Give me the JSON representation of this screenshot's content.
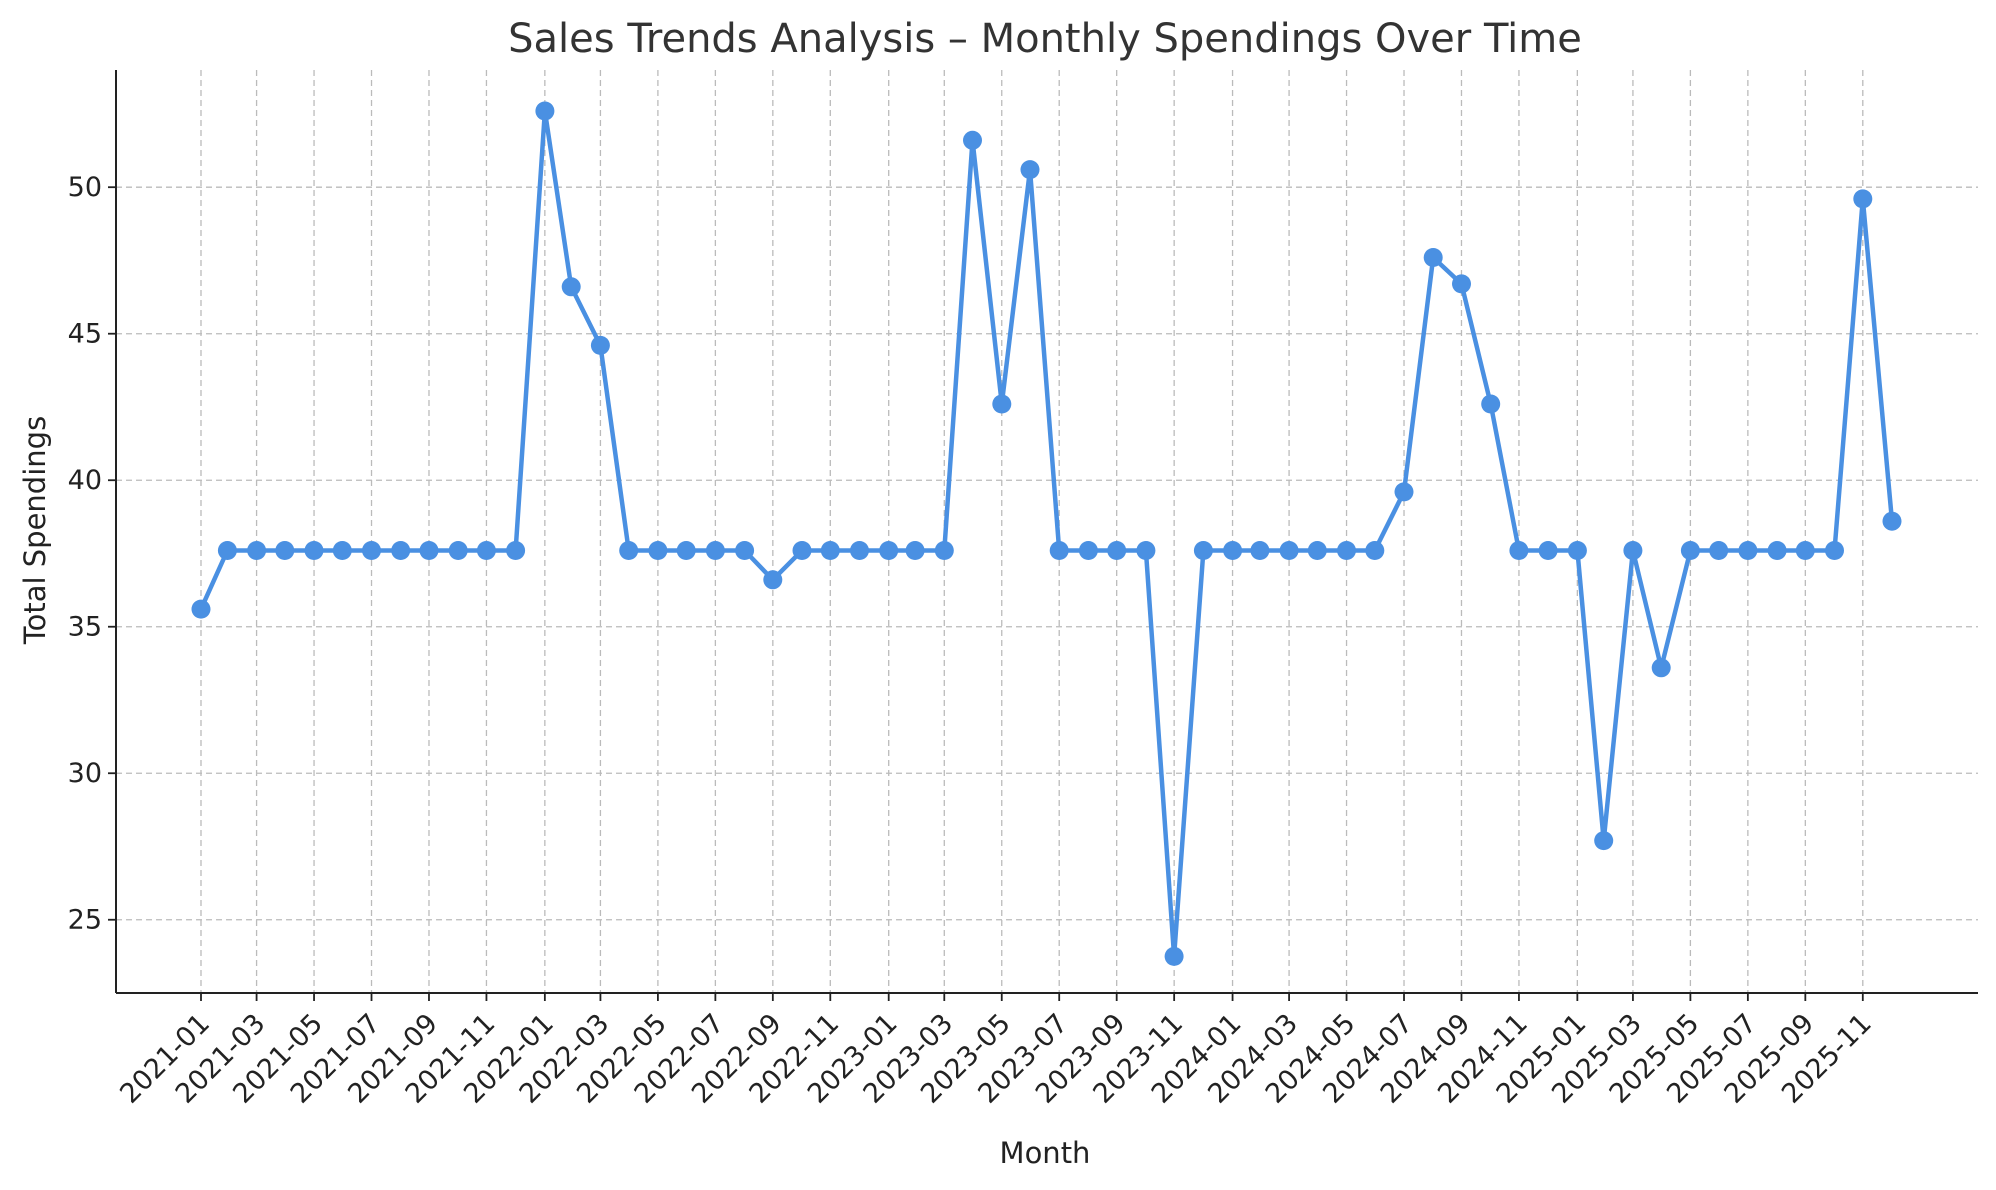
{
  "chart_data": {
    "type": "line",
    "title": "Sales Trends Analysis – Monthly Spendings Over Time",
    "xlabel": "Month",
    "ylabel": "Total Spendings",
    "ylim": [
      22.5,
      54
    ],
    "yticks": [
      25,
      30,
      35,
      40,
      45,
      50
    ],
    "grid": true,
    "color": "#4a90e2",
    "x_tick_labels": [
      "2021-01",
      "2021-03",
      "2021-05",
      "2021-07",
      "2021-09",
      "2021-11",
      "2022-01",
      "2022-03",
      "2022-05",
      "2022-07",
      "2022-09",
      "2022-11",
      "2023-01",
      "2023-03",
      "2023-05",
      "2023-07",
      "2023-09",
      "2023-11",
      "2024-01",
      "2024-03",
      "2024-05",
      "2024-07",
      "2024-09",
      "2024-11",
      "2025-01",
      "2025-03",
      "2025-05",
      "2025-07",
      "2025-09",
      "2025-11"
    ],
    "x": [
      "2021-01-31",
      "2021-02-28",
      "2021-03-31",
      "2021-04-30",
      "2021-05-31",
      "2021-06-30",
      "2021-07-31",
      "2021-08-31",
      "2021-09-30",
      "2021-10-31",
      "2021-11-30",
      "2021-12-31",
      "2022-01-31",
      "2022-02-28",
      "2022-03-31",
      "2022-04-30",
      "2022-05-31",
      "2022-06-30",
      "2022-07-31",
      "2022-08-31",
      "2022-09-30",
      "2022-10-31",
      "2022-11-30",
      "2022-12-31",
      "2023-01-31",
      "2023-02-28",
      "2023-03-31",
      "2023-04-30",
      "2023-05-31",
      "2023-06-30",
      "2023-07-31",
      "2023-08-31",
      "2023-09-30",
      "2023-10-31",
      "2023-11-30",
      "2023-12-31",
      "2024-01-31",
      "2024-02-29",
      "2024-03-31",
      "2024-04-30",
      "2024-05-31",
      "2024-06-30",
      "2024-07-31",
      "2024-08-31",
      "2024-09-30",
      "2024-10-31",
      "2024-11-30",
      "2024-12-31",
      "2025-01-31",
      "2025-02-28",
      "2025-03-31",
      "2025-04-30",
      "2025-05-31",
      "2025-06-30",
      "2025-07-31",
      "2025-08-31",
      "2025-09-30",
      "2025-10-31",
      "2025-11-30",
      "2025-12-31"
    ],
    "values": [
      35.6,
      37.6,
      37.6,
      37.6,
      37.6,
      37.6,
      37.6,
      37.6,
      37.6,
      37.6,
      37.6,
      37.6,
      52.6,
      46.6,
      44.6,
      37.6,
      37.6,
      37.6,
      37.6,
      37.6,
      36.6,
      37.6,
      37.6,
      37.6,
      37.6,
      37.6,
      37.6,
      51.6,
      42.6,
      50.6,
      37.6,
      37.6,
      37.6,
      37.6,
      23.75,
      37.6,
      37.6,
      37.6,
      37.6,
      37.6,
      37.6,
      37.6,
      39.6,
      47.6,
      46.7,
      42.6,
      37.6,
      37.6,
      37.6,
      27.7,
      37.6,
      33.6,
      37.6,
      37.6,
      37.6,
      37.6,
      37.6,
      37.6,
      49.6,
      38.6
    ]
  }
}
